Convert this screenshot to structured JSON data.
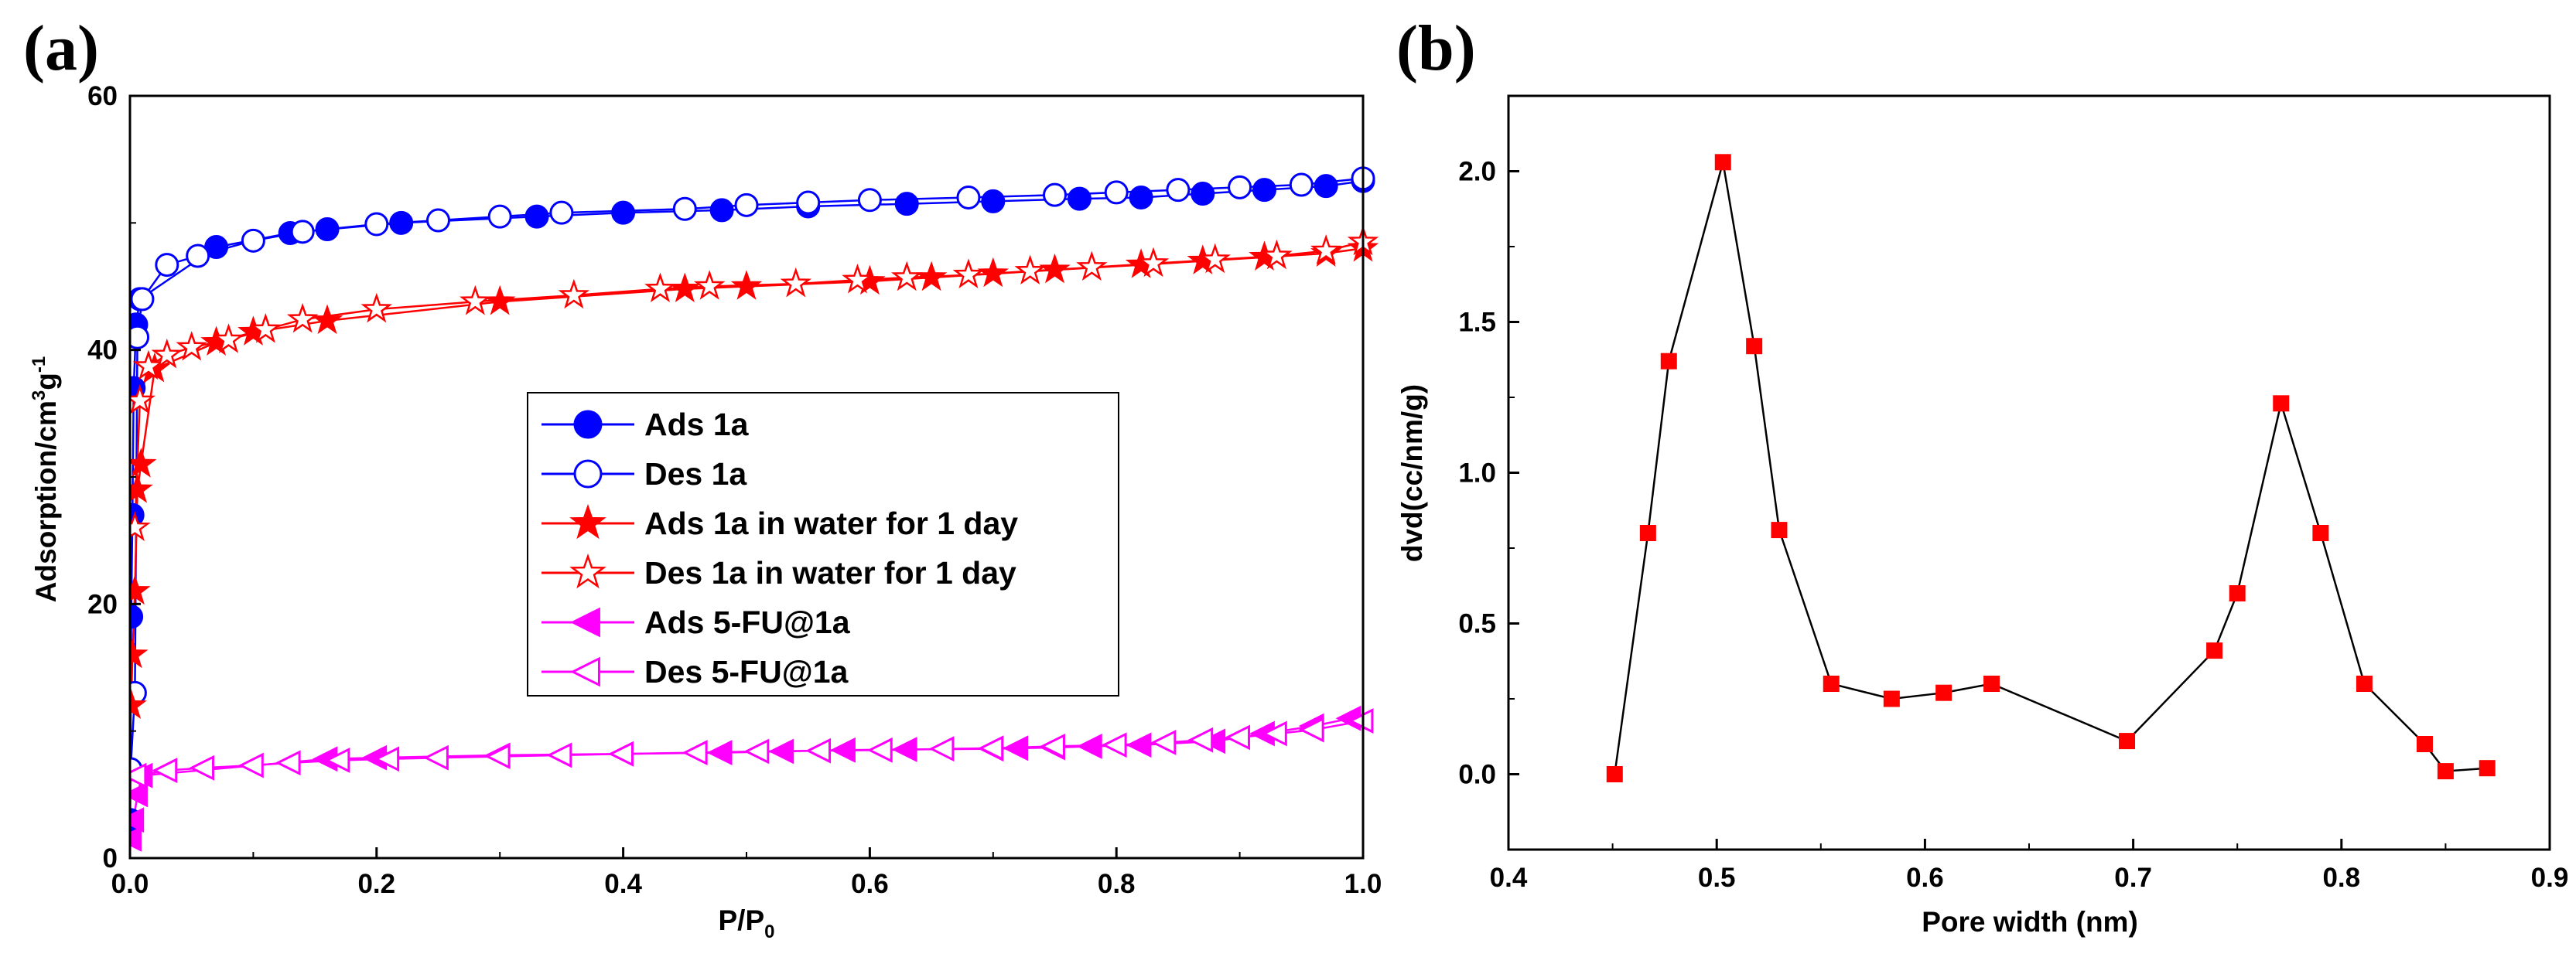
{
  "chart_data": [
    {
      "id": "a",
      "panel_label": "(a)",
      "type": "scatter",
      "xlabel": "P/P",
      "xlabel_sub": "0",
      "ylabel": "Adsorption/cm",
      "ylabel_sup1": "3",
      "ylabel_mid": "g",
      "ylabel_sup2": "-1",
      "xlim": [
        0.0,
        1.0
      ],
      "ylim": [
        0,
        60
      ],
      "xticks": [
        "0.0",
        "0.2",
        "0.4",
        "0.6",
        "0.8",
        "1.0"
      ],
      "yticks": [
        "0",
        "20",
        "40",
        "60"
      ],
      "legend_position": "center-right",
      "series": [
        {
          "name": "Ads 1a",
          "color": "#0000ff",
          "marker": "circle-filled",
          "x": [
            0.0002,
            0.001,
            0.002,
            0.003,
            0.005,
            0.008,
            0.07,
            0.13,
            0.16,
            0.22,
            0.33,
            0.4,
            0.48,
            0.55,
            0.63,
            0.7,
            0.77,
            0.82,
            0.87,
            0.92,
            0.97,
            1.0
          ],
          "y": [
            3,
            19,
            27,
            37,
            42,
            44,
            48.1,
            49.2,
            49.5,
            50.0,
            50.5,
            50.8,
            51.0,
            51.3,
            51.5,
            51.7,
            51.9,
            52.0,
            52.3,
            52.6,
            52.9,
            53.3
          ]
        },
        {
          "name": "Des 1a",
          "color": "#0000ff",
          "marker": "circle-open",
          "x": [
            0.0005,
            0.004,
            0.006,
            0.01,
            0.03,
            0.055,
            0.1,
            0.14,
            0.2,
            0.25,
            0.3,
            0.35,
            0.45,
            0.5,
            0.55,
            0.6,
            0.68,
            0.75,
            0.8,
            0.85,
            0.9,
            0.95,
            1.0
          ],
          "y": [
            7,
            13,
            41,
            44,
            46.7,
            47.4,
            48.6,
            49.3,
            49.9,
            50.2,
            50.5,
            50.8,
            51.1,
            51.4,
            51.6,
            51.8,
            52.0,
            52.2,
            52.4,
            52.6,
            52.8,
            53.0,
            53.5
          ]
        },
        {
          "name": "Ads 1a in water for 1 day",
          "color": "#ff0000",
          "marker": "star-filled",
          "x": [
            0.001,
            0.002,
            0.004,
            0.006,
            0.009,
            0.02,
            0.07,
            0.1,
            0.16,
            0.3,
            0.45,
            0.5,
            0.6,
            0.65,
            0.7,
            0.75,
            0.82,
            0.87,
            0.92,
            0.97,
            1.0
          ],
          "y": [
            12,
            16,
            21,
            29,
            31,
            38.5,
            40.6,
            41.4,
            42.3,
            43.8,
            44.8,
            45.0,
            45.4,
            45.7,
            46.0,
            46.3,
            46.7,
            47.0,
            47.3,
            47.6,
            48.0
          ]
        },
        {
          "name": "Des 1a in water for 1 day",
          "color": "#ff0000",
          "marker": "star-open",
          "x": [
            0.004,
            0.008,
            0.015,
            0.03,
            0.05,
            0.08,
            0.11,
            0.14,
            0.2,
            0.28,
            0.36,
            0.43,
            0.47,
            0.54,
            0.59,
            0.63,
            0.68,
            0.73,
            0.78,
            0.83,
            0.88,
            0.93,
            0.97,
            1.0
          ],
          "y": [
            26,
            36,
            38.7,
            39.6,
            40.2,
            40.8,
            41.6,
            42.4,
            43.2,
            43.8,
            44.3,
            44.8,
            45.0,
            45.2,
            45.5,
            45.7,
            45.9,
            46.2,
            46.5,
            46.8,
            47.1,
            47.4,
            47.8,
            48.5
          ]
        },
        {
          "name": "Ads 5-FU@1a",
          "color": "#ff00ff",
          "marker": "triangle-left-filled",
          "x": [
            0.001,
            0.003,
            0.006,
            0.01,
            0.16,
            0.2,
            0.3,
            0.4,
            0.48,
            0.53,
            0.58,
            0.63,
            0.7,
            0.72,
            0.75,
            0.78,
            0.82,
            0.88,
            0.92,
            0.96,
            0.99
          ],
          "y": [
            1.5,
            3,
            5,
            6.5,
            7.8,
            7.9,
            8.1,
            8.2,
            8.3,
            8.4,
            8.5,
            8.55,
            8.6,
            8.65,
            8.7,
            8.8,
            8.9,
            9.2,
            9.8,
            10.4,
            11.0
          ]
        },
        {
          "name": "Des 5-FU@1a",
          "color": "#ff00ff",
          "marker": "triangle-left-open",
          "x": [
            0.005,
            0.03,
            0.06,
            0.1,
            0.13,
            0.17,
            0.21,
            0.25,
            0.3,
            0.35,
            0.4,
            0.46,
            0.51,
            0.56,
            0.61,
            0.66,
            0.7,
            0.75,
            0.8,
            0.84,
            0.87,
            0.9,
            0.93,
            0.96,
            1.0
          ],
          "y": [
            6.5,
            6.9,
            7.1,
            7.3,
            7.5,
            7.7,
            7.8,
            7.9,
            8.0,
            8.1,
            8.2,
            8.3,
            8.4,
            8.45,
            8.5,
            8.6,
            8.65,
            8.8,
            8.9,
            9.1,
            9.3,
            9.5,
            9.8,
            10.1,
            10.8
          ]
        }
      ]
    },
    {
      "id": "b",
      "panel_label": "(b)",
      "type": "line",
      "xlabel": "Pore width (nm)",
      "ylabel": "dvd(cc/nm/g)",
      "xlim": [
        0.4,
        0.9
      ],
      "ylim": [
        -0.25,
        2.25
      ],
      "xticks": [
        "0.4",
        "0.5",
        "0.6",
        "0.7",
        "0.8",
        "0.9"
      ],
      "yticks": [
        "0.0",
        "0.5",
        "1.0",
        "1.5",
        "2.0"
      ],
      "series": [
        {
          "name": "dvd",
          "color": "#ff0000",
          "line_color": "#000000",
          "marker": "square-filled",
          "x": [
            0.451,
            0.467,
            0.477,
            0.503,
            0.518,
            0.53,
            0.555,
            0.584,
            0.609,
            0.632,
            0.697,
            0.739,
            0.75,
            0.771,
            0.79,
            0.811,
            0.84,
            0.85,
            0.87
          ],
          "y": [
            0.0,
            0.8,
            1.37,
            2.03,
            1.42,
            0.81,
            0.3,
            0.25,
            0.27,
            0.3,
            0.11,
            0.41,
            0.6,
            1.23,
            0.8,
            0.3,
            0.1,
            0.01,
            0.02
          ]
        }
      ]
    }
  ]
}
